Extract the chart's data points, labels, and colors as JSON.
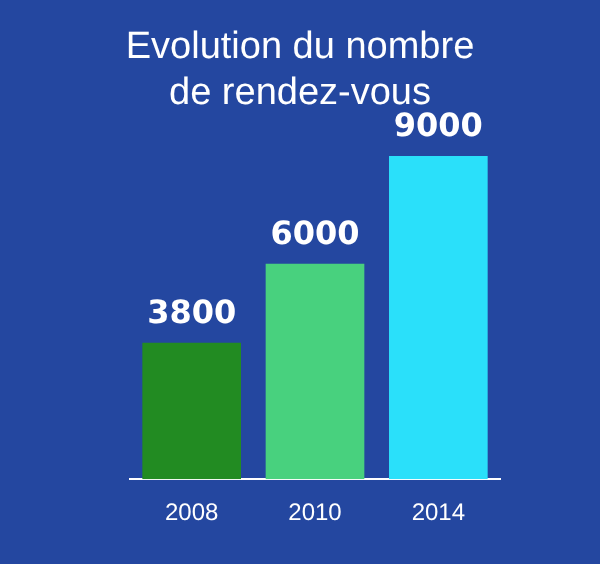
{
  "chart_data": {
    "type": "bar",
    "title": "Evolution du nombre de rendez-vous",
    "categories": [
      "2008",
      "2010",
      "2014"
    ],
    "values": [
      3800,
      6000,
      9000
    ],
    "colors": [
      "#228b22",
      "#48d17e",
      "#2ae0fa"
    ],
    "data_labels": true,
    "grid": false,
    "legend": false
  }
}
